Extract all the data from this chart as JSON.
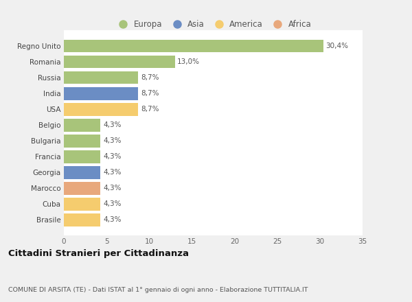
{
  "categories": [
    "Brasile",
    "Cuba",
    "Marocco",
    "Georgia",
    "Francia",
    "Bulgaria",
    "Belgio",
    "USA",
    "India",
    "Russia",
    "Romania",
    "Regno Unito"
  ],
  "values": [
    4.3,
    4.3,
    4.3,
    4.3,
    4.3,
    4.3,
    4.3,
    8.7,
    8.7,
    8.7,
    13.0,
    30.4
  ],
  "colors": [
    "#f5cc6e",
    "#f5cc6e",
    "#e8a87c",
    "#6b8dc4",
    "#a8c47a",
    "#a8c47a",
    "#a8c47a",
    "#f5cc6e",
    "#6b8dc4",
    "#a8c47a",
    "#a8c47a",
    "#a8c47a"
  ],
  "labels": [
    "4,3%",
    "4,3%",
    "4,3%",
    "4,3%",
    "4,3%",
    "4,3%",
    "4,3%",
    "8,7%",
    "8,7%",
    "8,7%",
    "13,0%",
    "30,4%"
  ],
  "legend": [
    {
      "label": "Europa",
      "color": "#a8c47a"
    },
    {
      "label": "Asia",
      "color": "#6b8dc4"
    },
    {
      "label": "America",
      "color": "#f5cc6e"
    },
    {
      "label": "Africa",
      "color": "#e8a87c"
    }
  ],
  "xlim": [
    0,
    35
  ],
  "xticks": [
    0,
    5,
    10,
    15,
    20,
    25,
    30,
    35
  ],
  "title": "Cittadini Stranieri per Cittadinanza",
  "subtitle": "COMUNE DI ARSITA (TE) - Dati ISTAT al 1° gennaio di ogni anno - Elaborazione TUTTITALIA.IT",
  "background_color": "#f0f0f0",
  "plot_area_color": "#ffffff",
  "grid_color": "#ffffff"
}
